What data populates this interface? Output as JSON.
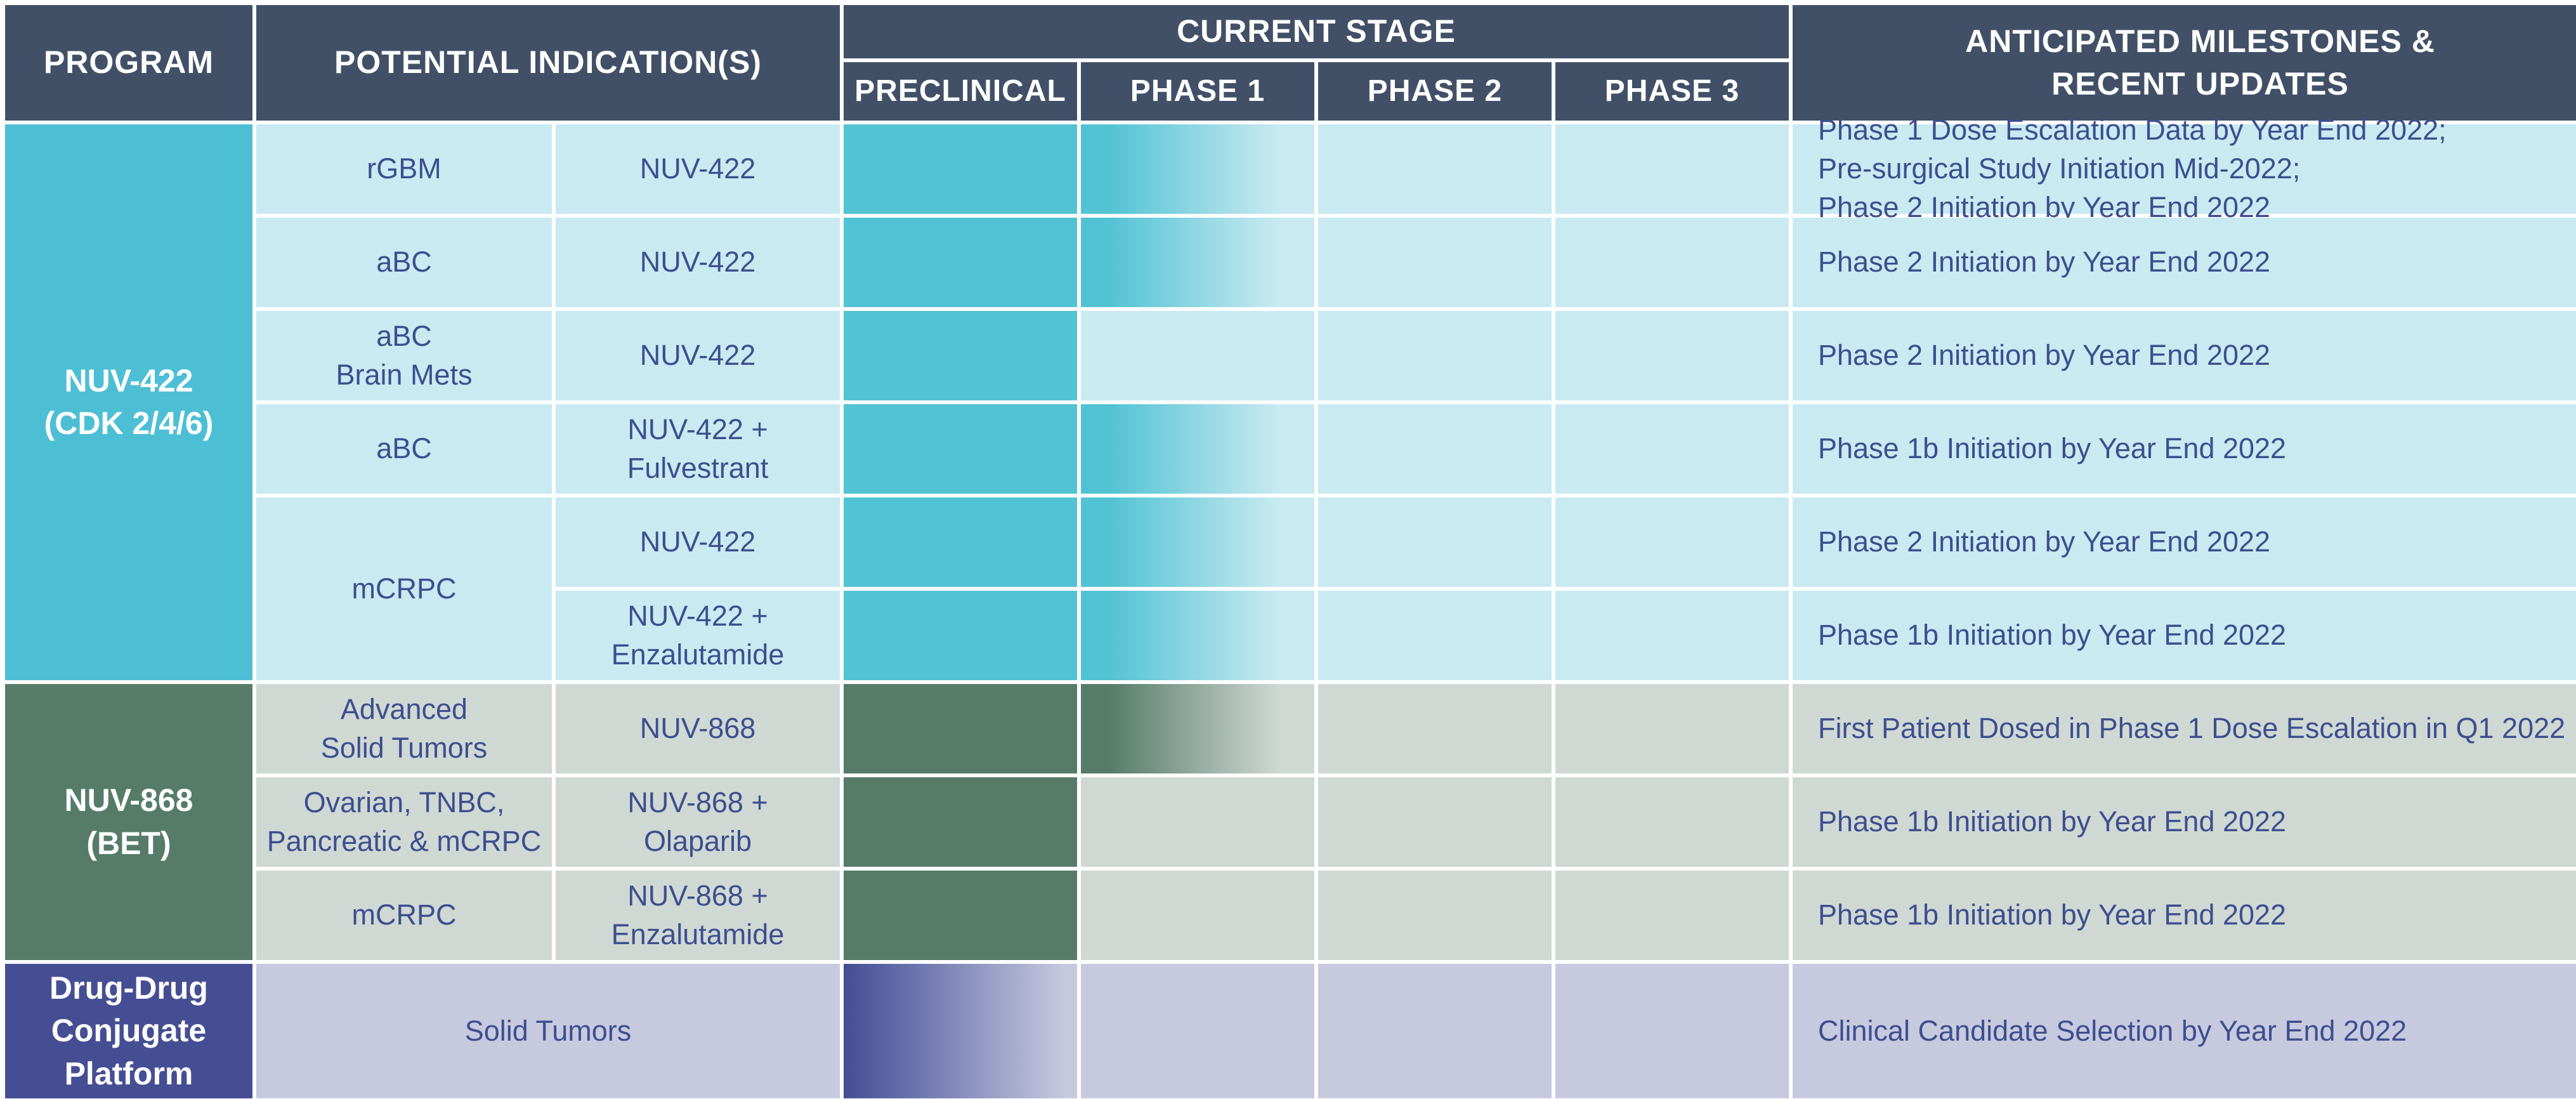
{
  "headers": {
    "program": "PROGRAM",
    "indications": "POTENTIAL INDICATION(S)",
    "current_stage": "CURRENT STAGE",
    "preclinical": "PRECLINICAL",
    "phase1": "PHASE 1",
    "phase2": "PHASE 2",
    "phase3": "PHASE 3",
    "milestones": "ANTICIPATED MILESTONES &\nRECENT UPDATES"
  },
  "programs": {
    "nuv422": {
      "name": "NUV-422\n(CDK 2/4/6)",
      "color": "#4dbfd5"
    },
    "nuv868": {
      "name": "NUV-868\n(BET)",
      "color": "#567c69"
    },
    "ddc": {
      "name": "Drug-Drug\nConjugate\nPlatform",
      "color": "#464e93"
    }
  },
  "rows": [
    {
      "indication": "rGBM",
      "therapy": "NUV-422",
      "stage": "Phase 1",
      "milestone": "Phase 1 Dose Escalation Data by Year End 2022;\nPre-surgical Study Initiation Mid-2022;\nPhase 2 Initiation by Year End 2022"
    },
    {
      "indication": "aBC",
      "therapy": "NUV-422",
      "stage": "Phase 1",
      "milestone": "Phase 2 Initiation by Year End 2022"
    },
    {
      "indication": "aBC\nBrain Mets",
      "therapy": "NUV-422",
      "stage": "Preclinical",
      "milestone": "Phase 2 Initiation by Year End 2022"
    },
    {
      "indication": "aBC",
      "therapy": "NUV-422 +\nFulvestrant",
      "stage": "Phase 1",
      "milestone": "Phase 1b Initiation by Year End 2022"
    },
    {
      "indication": "mCRPC",
      "therapy": "NUV-422",
      "stage": "Phase 1",
      "milestone": "Phase 2 Initiation by Year End 2022"
    },
    {
      "indication": "",
      "therapy": "NUV-422 +\nEnzalutamide",
      "stage": "Phase 1",
      "milestone": "Phase 1b Initiation by Year End 2022"
    },
    {
      "indication": "Advanced\nSolid Tumors",
      "therapy": "NUV-868",
      "stage": "Phase 1",
      "milestone": "First Patient Dosed in Phase 1 Dose Escalation in Q1 2022"
    },
    {
      "indication": "Ovarian, TNBC,\nPancreatic & mCRPC",
      "therapy": "NUV-868 +\nOlaparib",
      "stage": "Preclinical",
      "milestone": "Phase 1b Initiation by Year End 2022"
    },
    {
      "indication": "mCRPC",
      "therapy": "NUV-868 +\nEnzalutamide",
      "stage": "Preclinical",
      "milestone": "Phase 1b Initiation by Year End 2022"
    },
    {
      "indication": "Solid Tumors",
      "therapy": "",
      "stage": "Preclinical",
      "milestone": "Clinical Candidate Selection by Year End 2022"
    }
  ]
}
